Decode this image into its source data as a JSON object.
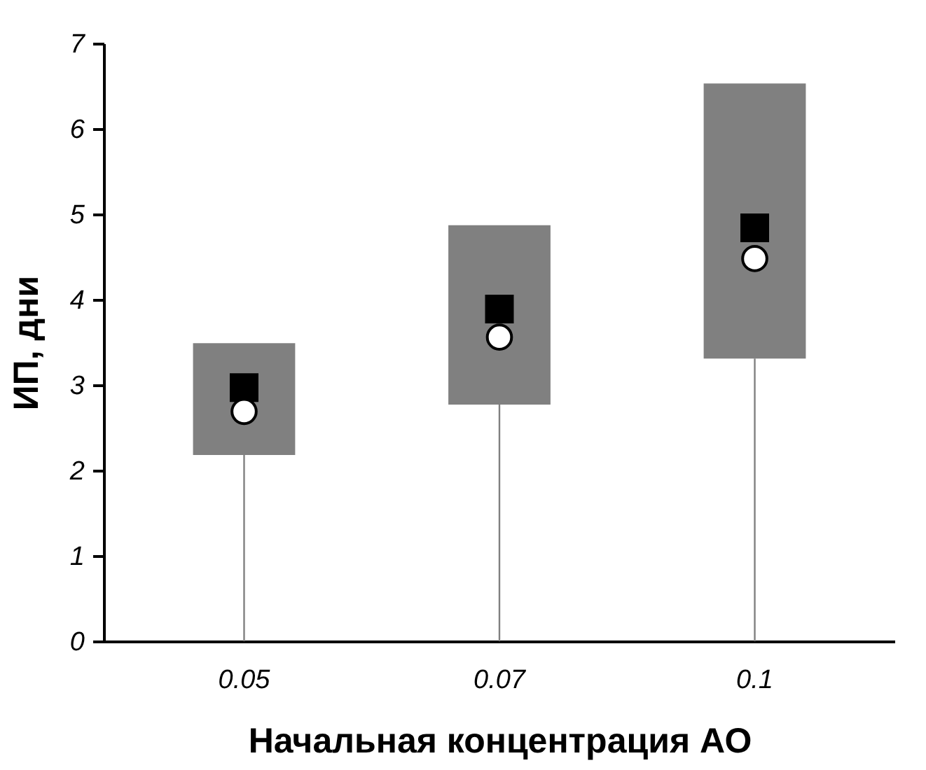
{
  "chart_data": {
    "type": "bar",
    "xlabel": "Начальная концентрация АО",
    "ylabel": "ИП, дни",
    "categories": [
      "0.05",
      "0.07",
      "0.1"
    ],
    "ylim": [
      0,
      7
    ],
    "yticks": [
      0,
      1,
      2,
      3,
      4,
      5,
      6,
      7
    ],
    "grid": false,
    "series": [
      {
        "color": "#808080",
        "values": [
          1.31,
          2.1,
          3.22
        ],
        "base": [
          2.18,
          2.77,
          3.31
        ],
        "errors": [
          [
            0,
            2.18
          ],
          [
            0,
            2.77
          ],
          [
            0,
            3.31
          ]
        ]
      },
      {
        "type": "scatter",
        "color": "#000000",
        "marker": "square",
        "values": [
          2.97,
          3.89,
          4.84
        ]
      },
      {
        "type": "scatter",
        "color": "#ffffff",
        "marker": "circle",
        "values": [
          2.69,
          3.56,
          4.48
        ]
      }
    ]
  }
}
